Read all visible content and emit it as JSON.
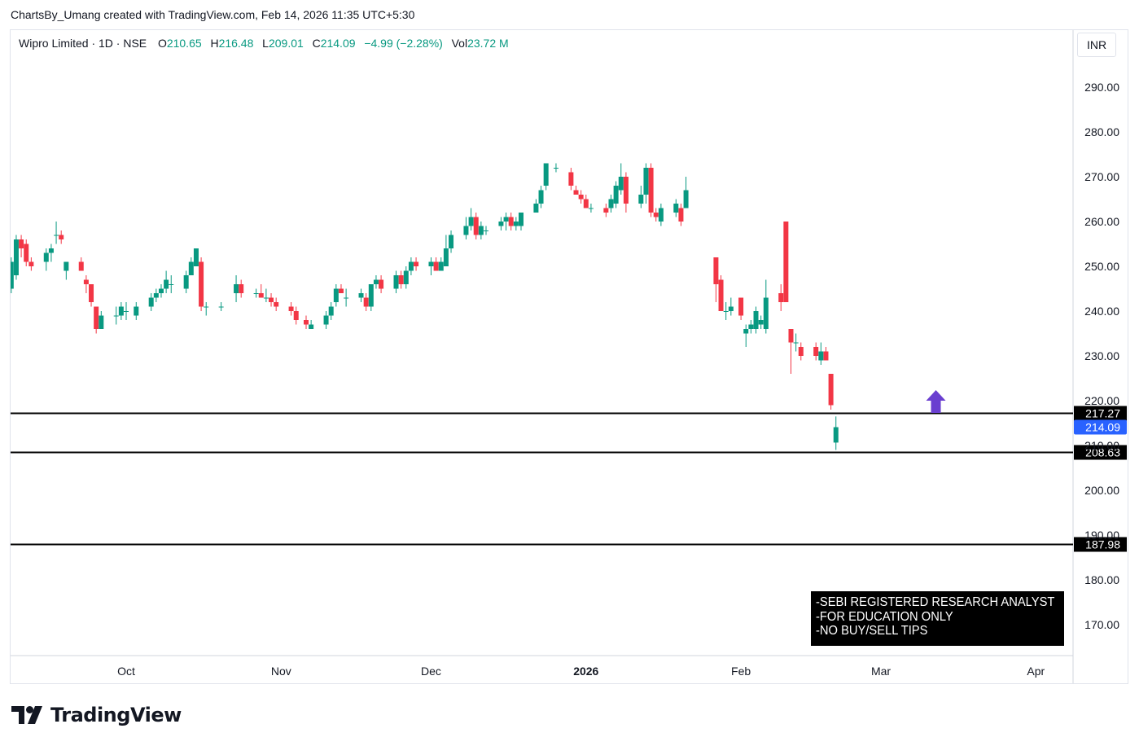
{
  "credit": "ChartsBy_Umang created with TradingView.com, Feb 14, 2026 11:35 UTC+5:30",
  "legend": {
    "symbol": "Wipro Limited · 1D · NSE",
    "o_label": "O",
    "o_value": "210.65",
    "h_label": "H",
    "h_value": "216.48",
    "l_label": "L",
    "l_value": "209.01",
    "c_label": "C",
    "c_value": "214.09",
    "change": "−4.99 (−2.28%)",
    "vol_label": "Vol",
    "vol_value": "23.72 M"
  },
  "currency": "INR",
  "disclaimer": {
    "line1": "-SEBI REGISTERED RESEARCH ANALYST",
    "line2": "-FOR EDUCATION ONLY",
    "line3": "-NO BUY/SELL TIPS"
  },
  "brand": "TradingView",
  "colors": {
    "up": "#089981",
    "down": "#f23645",
    "last_price": "#2962ff",
    "arrow": "#6a3fd0",
    "level_line": "#000000"
  },
  "chart_data": {
    "type": "candlestick",
    "symbol": "Wipro Limited",
    "interval": "1D",
    "exchange": "NSE",
    "currency": "INR",
    "ylim": [
      162,
      300
    ],
    "y_ticks": [
      170,
      180,
      190,
      200,
      210,
      220,
      230,
      240,
      250,
      260,
      270,
      280,
      290
    ],
    "y_tick_labels": [
      "170.00",
      "180.00",
      "190.00",
      "200.00",
      "210.00",
      "220.00",
      "230.00",
      "240.00",
      "250.00",
      "260.00",
      "270.00",
      "280.00",
      "290.00"
    ],
    "x_labels": [
      {
        "label": "Oct",
        "date": "2025-10-01"
      },
      {
        "label": "Nov",
        "date": "2025-11-01"
      },
      {
        "label": "Dec",
        "date": "2025-12-01"
      },
      {
        "label": "2026",
        "date": "2026-01-01",
        "bold": true
      },
      {
        "label": "Feb",
        "date": "2026-02-01"
      },
      {
        "label": "Mar",
        "date": "2026-03-01"
      },
      {
        "label": "Apr",
        "date": "2026-04-01"
      }
    ],
    "horizontal_levels": [
      {
        "value": 217.27,
        "label": "217.27"
      },
      {
        "value": 208.63,
        "label": "208.63"
      },
      {
        "value": 187.98,
        "label": "187.98"
      }
    ],
    "last_price": {
      "value": 214.09,
      "label": "214.09"
    },
    "annotation": {
      "type": "up-arrow",
      "date": "2026-03-12",
      "value": 217.27
    },
    "candles": [
      {
        "d": "2025-09-08",
        "o": 245,
        "h": 252,
        "l": 244,
        "c": 251
      },
      {
        "d": "2025-09-09",
        "o": 248,
        "h": 257,
        "l": 247,
        "c": 256
      },
      {
        "d": "2025-09-10",
        "o": 256,
        "h": 257,
        "l": 252,
        "c": 254
      },
      {
        "d": "2025-09-11",
        "o": 255,
        "h": 256,
        "l": 250,
        "c": 251
      },
      {
        "d": "2025-09-12",
        "o": 251,
        "h": 252,
        "l": 249,
        "c": 250
      },
      {
        "d": "2025-09-15",
        "o": 251,
        "h": 254,
        "l": 249,
        "c": 253
      },
      {
        "d": "2025-09-16",
        "o": 253,
        "h": 255,
        "l": 251,
        "c": 254
      },
      {
        "d": "2025-09-17",
        "o": 257,
        "h": 260,
        "l": 255,
        "c": 257
      },
      {
        "d": "2025-09-18",
        "o": 257,
        "h": 258,
        "l": 255,
        "c": 256
      },
      {
        "d": "2025-09-19",
        "o": 249,
        "h": 251,
        "l": 247,
        "c": 251
      },
      {
        "d": "2025-09-22",
        "o": 251,
        "h": 252,
        "l": 249,
        "c": 249
      },
      {
        "d": "2025-09-23",
        "o": 247,
        "h": 248,
        "l": 244,
        "c": 246
      },
      {
        "d": "2025-09-24",
        "o": 246,
        "h": 246,
        "l": 241,
        "c": 242
      },
      {
        "d": "2025-09-25",
        "o": 241,
        "h": 241,
        "l": 235,
        "c": 236
      },
      {
        "d": "2025-09-26",
        "o": 236,
        "h": 240,
        "l": 236,
        "c": 239
      },
      {
        "d": "2025-09-29",
        "o": 239,
        "h": 241,
        "l": 237,
        "c": 239
      },
      {
        "d": "2025-09-30",
        "o": 239,
        "h": 242,
        "l": 238,
        "c": 241
      },
      {
        "d": "2025-10-01",
        "o": 240,
        "h": 242,
        "l": 238,
        "c": 240
      },
      {
        "d": "2025-10-03",
        "o": 239,
        "h": 242,
        "l": 238,
        "c": 241
      },
      {
        "d": "2025-10-06",
        "o": 241,
        "h": 244,
        "l": 240,
        "c": 243
      },
      {
        "d": "2025-10-07",
        "o": 243,
        "h": 245,
        "l": 242,
        "c": 244
      },
      {
        "d": "2025-10-08",
        "o": 244,
        "h": 246,
        "l": 243,
        "c": 245
      },
      {
        "d": "2025-10-09",
        "o": 245,
        "h": 249,
        "l": 244,
        "c": 247
      },
      {
        "d": "2025-10-10",
        "o": 246,
        "h": 248,
        "l": 244,
        "c": 246
      },
      {
        "d": "2025-10-13",
        "o": 245,
        "h": 249,
        "l": 244,
        "c": 248
      },
      {
        "d": "2025-10-14",
        "o": 248,
        "h": 252,
        "l": 248,
        "c": 251
      },
      {
        "d": "2025-10-15",
        "o": 250,
        "h": 254,
        "l": 250,
        "c": 254
      },
      {
        "d": "2025-10-16",
        "o": 251,
        "h": 252,
        "l": 240,
        "c": 241
      },
      {
        "d": "2025-10-17",
        "o": 241,
        "h": 242,
        "l": 239,
        "c": 241
      },
      {
        "d": "2025-10-20",
        "o": 241,
        "h": 242,
        "l": 240,
        "c": 241
      },
      {
        "d": "2025-10-23",
        "o": 244,
        "h": 248,
        "l": 242,
        "c": 246
      },
      {
        "d": "2025-10-24",
        "o": 246,
        "h": 247,
        "l": 243,
        "c": 244
      },
      {
        "d": "2025-10-27",
        "o": 244,
        "h": 245,
        "l": 243,
        "c": 244
      },
      {
        "d": "2025-10-28",
        "o": 244,
        "h": 246,
        "l": 243,
        "c": 243
      },
      {
        "d": "2025-10-29",
        "o": 243,
        "h": 245,
        "l": 242,
        "c": 243
      },
      {
        "d": "2025-10-30",
        "o": 243,
        "h": 244,
        "l": 241,
        "c": 242
      },
      {
        "d": "2025-10-31",
        "o": 242,
        "h": 243,
        "l": 240,
        "c": 241
      },
      {
        "d": "2025-11-03",
        "o": 241,
        "h": 242,
        "l": 239,
        "c": 240
      },
      {
        "d": "2025-11-04",
        "o": 240,
        "h": 241,
        "l": 237,
        "c": 238
      },
      {
        "d": "2025-11-06",
        "o": 238,
        "h": 239,
        "l": 236,
        "c": 237
      },
      {
        "d": "2025-11-07",
        "o": 236,
        "h": 238,
        "l": 236,
        "c": 237
      },
      {
        "d": "2025-11-10",
        "o": 237,
        "h": 240,
        "l": 236,
        "c": 239
      },
      {
        "d": "2025-11-11",
        "o": 239,
        "h": 242,
        "l": 238,
        "c": 241
      },
      {
        "d": "2025-11-12",
        "o": 242,
        "h": 246,
        "l": 241,
        "c": 245
      },
      {
        "d": "2025-11-13",
        "o": 245,
        "h": 246,
        "l": 244,
        "c": 244
      },
      {
        "d": "2025-11-14",
        "o": 243,
        "h": 245,
        "l": 241,
        "c": 243
      },
      {
        "d": "2025-11-17",
        "o": 243,
        "h": 245,
        "l": 242,
        "c": 244
      },
      {
        "d": "2025-11-18",
        "o": 243,
        "h": 244,
        "l": 240,
        "c": 241
      },
      {
        "d": "2025-11-19",
        "o": 241,
        "h": 246,
        "l": 240,
        "c": 246
      },
      {
        "d": "2025-11-20",
        "o": 246,
        "h": 248,
        "l": 245,
        "c": 247
      },
      {
        "d": "2025-11-21",
        "o": 247,
        "h": 248,
        "l": 244,
        "c": 245
      },
      {
        "d": "2025-11-24",
        "o": 245,
        "h": 249,
        "l": 244,
        "c": 248
      },
      {
        "d": "2025-11-25",
        "o": 248,
        "h": 249,
        "l": 245,
        "c": 246
      },
      {
        "d": "2025-11-26",
        "o": 246,
        "h": 250,
        "l": 245,
        "c": 249
      },
      {
        "d": "2025-11-27",
        "o": 249,
        "h": 252,
        "l": 248,
        "c": 251
      },
      {
        "d": "2025-11-28",
        "o": 251,
        "h": 252,
        "l": 249,
        "c": 250
      },
      {
        "d": "2025-12-01",
        "o": 250,
        "h": 252,
        "l": 248,
        "c": 251
      },
      {
        "d": "2025-12-02",
        "o": 251,
        "h": 252,
        "l": 249,
        "c": 249
      },
      {
        "d": "2025-12-03",
        "o": 249,
        "h": 252,
        "l": 249,
        "c": 251
      },
      {
        "d": "2025-12-04",
        "o": 250,
        "h": 257,
        "l": 250,
        "c": 254
      },
      {
        "d": "2025-12-05",
        "o": 254,
        "h": 258,
        "l": 253,
        "c": 257
      },
      {
        "d": "2025-12-08",
        "o": 257,
        "h": 261,
        "l": 256,
        "c": 259
      },
      {
        "d": "2025-12-09",
        "o": 259,
        "h": 263,
        "l": 258,
        "c": 261
      },
      {
        "d": "2025-12-10",
        "o": 261,
        "h": 262,
        "l": 256,
        "c": 257
      },
      {
        "d": "2025-12-11",
        "o": 257,
        "h": 260,
        "l": 256,
        "c": 259
      },
      {
        "d": "2025-12-12",
        "o": 258,
        "h": 259,
        "l": 257,
        "c": 258
      },
      {
        "d": "2025-12-15",
        "o": 259,
        "h": 261,
        "l": 258,
        "c": 260
      },
      {
        "d": "2025-12-16",
        "o": 260,
        "h": 262,
        "l": 258,
        "c": 261
      },
      {
        "d": "2025-12-17",
        "o": 261,
        "h": 262,
        "l": 258,
        "c": 259
      },
      {
        "d": "2025-12-18",
        "o": 259,
        "h": 261,
        "l": 258,
        "c": 260
      },
      {
        "d": "2025-12-19",
        "o": 259,
        "h": 262,
        "l": 258,
        "c": 262
      },
      {
        "d": "2025-12-22",
        "o": 262,
        "h": 265,
        "l": 262,
        "c": 264
      },
      {
        "d": "2025-12-23",
        "o": 264,
        "h": 268,
        "l": 263,
        "c": 267
      },
      {
        "d": "2025-12-24",
        "o": 268,
        "h": 273,
        "l": 267,
        "c": 273
      },
      {
        "d": "2025-12-26",
        "o": 272,
        "h": 273,
        "l": 271,
        "c": 272
      },
      {
        "d": "2025-12-29",
        "o": 271,
        "h": 272,
        "l": 267,
        "c": 268
      },
      {
        "d": "2025-12-30",
        "o": 267,
        "h": 268,
        "l": 266,
        "c": 266
      },
      {
        "d": "2025-12-31",
        "o": 266,
        "h": 267,
        "l": 264,
        "c": 265
      },
      {
        "d": "2026-01-01",
        "o": 265,
        "h": 266,
        "l": 263,
        "c": 263
      },
      {
        "d": "2026-01-02",
        "o": 263,
        "h": 264,
        "l": 262,
        "c": 263
      },
      {
        "d": "2026-01-05",
        "o": 263,
        "h": 264,
        "l": 261,
        "c": 262
      },
      {
        "d": "2026-01-06",
        "o": 263,
        "h": 266,
        "l": 262,
        "c": 265
      },
      {
        "d": "2026-01-07",
        "o": 264,
        "h": 269,
        "l": 263,
        "c": 268
      },
      {
        "d": "2026-01-08",
        "o": 267,
        "h": 273,
        "l": 266,
        "c": 270
      },
      {
        "d": "2026-01-09",
        "o": 270,
        "h": 271,
        "l": 262,
        "c": 264
      },
      {
        "d": "2026-01-12",
        "o": 264,
        "h": 268,
        "l": 263,
        "c": 266
      },
      {
        "d": "2026-01-13",
        "o": 266,
        "h": 273,
        "l": 264,
        "c": 272
      },
      {
        "d": "2026-01-14",
        "o": 272,
        "h": 273,
        "l": 261,
        "c": 262
      },
      {
        "d": "2026-01-15",
        "o": 262,
        "h": 263,
        "l": 260,
        "c": 261
      },
      {
        "d": "2026-01-16",
        "o": 260,
        "h": 264,
        "l": 259,
        "c": 263
      },
      {
        "d": "2026-01-19",
        "o": 262,
        "h": 265,
        "l": 261,
        "c": 264
      },
      {
        "d": "2026-01-20",
        "o": 263,
        "h": 264,
        "l": 259,
        "c": 260
      },
      {
        "d": "2026-01-21",
        "o": 263,
        "h": 270,
        "l": 263,
        "c": 267
      },
      {
        "d": "2026-01-27",
        "o": 252,
        "h": 252,
        "l": 242,
        "c": 246
      },
      {
        "d": "2026-01-28",
        "o": 247,
        "h": 248,
        "l": 240,
        "c": 240
      },
      {
        "d": "2026-01-29",
        "o": 240,
        "h": 242,
        "l": 238,
        "c": 240
      },
      {
        "d": "2026-01-30",
        "o": 240,
        "h": 243,
        "l": 239,
        "c": 241
      },
      {
        "d": "2026-02-01",
        "o": 243,
        "h": 243,
        "l": 238,
        "c": 239
      },
      {
        "d": "2026-02-02",
        "o": 235,
        "h": 237,
        "l": 232,
        "c": 236
      },
      {
        "d": "2026-02-03",
        "o": 236,
        "h": 238,
        "l": 235,
        "c": 237
      },
      {
        "d": "2026-02-04",
        "o": 236,
        "h": 241,
        "l": 235,
        "c": 240
      },
      {
        "d": "2026-02-05",
        "o": 237,
        "h": 239,
        "l": 236,
        "c": 238
      },
      {
        "d": "2026-02-06",
        "o": 236,
        "h": 247,
        "l": 235,
        "c": 243
      },
      {
        "d": "2026-02-09",
        "o": 244,
        "h": 246,
        "l": 240,
        "c": 242
      },
      {
        "d": "2026-02-10",
        "o": 260,
        "h": 260,
        "l": 242,
        "c": 242
      },
      {
        "d": "2026-02-11",
        "o": 236,
        "h": 236,
        "l": 226,
        "c": 233
      },
      {
        "d": "2026-02-12",
        "o": 233,
        "h": 235,
        "l": 231,
        "c": 233
      },
      {
        "d": "2026-02-13",
        "o": 232,
        "h": 233,
        "l": 229,
        "c": 230
      },
      {
        "d": "2026-02-16",
        "o": 232,
        "h": 233,
        "l": 229,
        "c": 230
      },
      {
        "d": "2026-02-17",
        "o": 229,
        "h": 233,
        "l": 228,
        "c": 231
      },
      {
        "d": "2026-02-18",
        "o": 231,
        "h": 232,
        "l": 229,
        "c": 229
      },
      {
        "d": "2026-02-19",
        "o": 226,
        "h": 226,
        "l": 218,
        "c": 219
      },
      {
        "d": "2026-02-20",
        "o": 210.65,
        "h": 216.48,
        "l": 209.01,
        "c": 214.09
      }
    ]
  }
}
